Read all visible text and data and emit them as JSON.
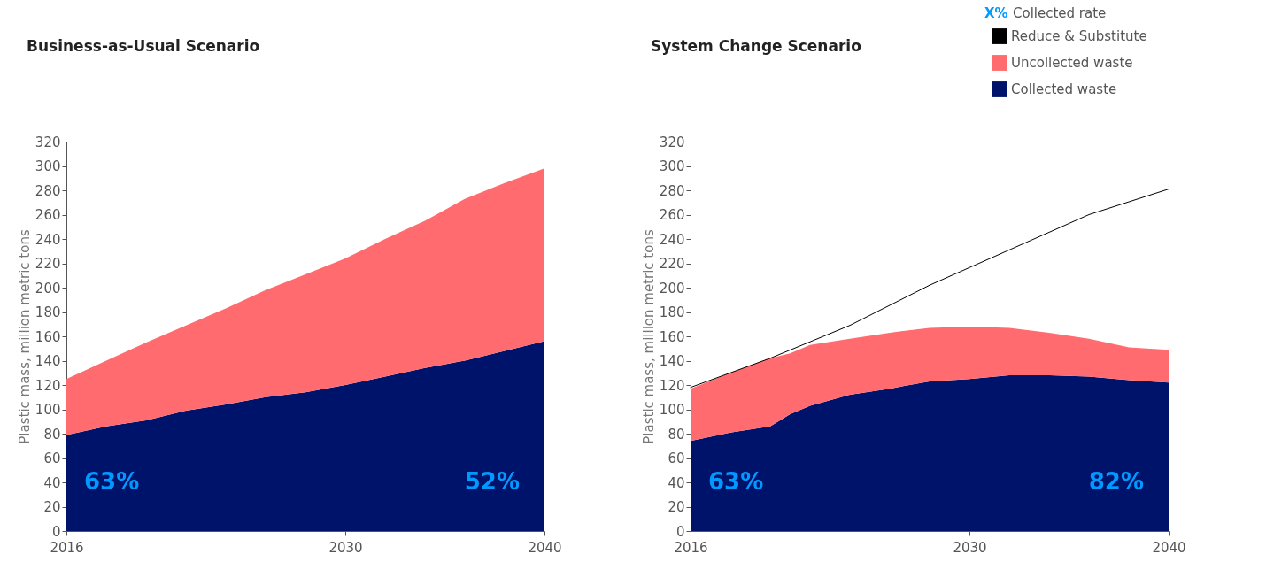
{
  "chart_data": [
    {
      "type": "area",
      "title": "Business-as-Usual Scenario",
      "ylabel": "Plastic mass, million metric tons",
      "stacked": true,
      "legend": false,
      "x": [
        2016,
        2018,
        2020,
        2022,
        2024,
        2026,
        2028,
        2030,
        2032,
        2034,
        2036,
        2038,
        2040
      ],
      "xlim": [
        2016,
        2040
      ],
      "xticks": [
        2016,
        2030,
        2040
      ],
      "ylim": [
        0,
        320
      ],
      "yticks": [
        0,
        20,
        40,
        60,
        80,
        100,
        120,
        140,
        160,
        180,
        200,
        220,
        240,
        260,
        280,
        300,
        320
      ],
      "series": [
        {
          "color": "#00136b",
          "values": [
            79,
            86,
            91,
            99,
            104,
            110,
            114,
            120,
            127,
            134,
            140,
            148,
            156
          ]
        },
        {
          "color": "#ff6b6e",
          "values": [
            46,
            54,
            64,
            70,
            79,
            88,
            97,
            104,
            113,
            121,
            133,
            138,
            142
          ]
        }
      ],
      "annotations": [
        "63%",
        "52%"
      ]
    },
    {
      "type": "area",
      "title": "System Change Scenario",
      "ylabel": "Plastic mass, million metric tons",
      "stacked": true,
      "legend": "top right",
      "x": [
        2016,
        2018,
        2020,
        2021,
        2022,
        2024,
        2026,
        2028,
        2030,
        2032,
        2034,
        2036,
        2038,
        2040
      ],
      "xlim": [
        2016,
        2040
      ],
      "xticks": [
        2016,
        2030,
        2040
      ],
      "ylim": [
        0,
        320
      ],
      "yticks": [
        0,
        20,
        40,
        60,
        80,
        100,
        120,
        140,
        160,
        180,
        200,
        220,
        240,
        260,
        280,
        300,
        320
      ],
      "series": [
        {
          "name": "Collected waste",
          "color": "#00136b",
          "values": [
            74,
            81,
            86,
            96,
            103,
            112,
            117,
            123,
            125,
            128,
            128,
            127,
            124,
            122
          ]
        },
        {
          "name": "Uncollected waste",
          "color": "#ff6b6e",
          "values": [
            43,
            49,
            56,
            50,
            50,
            46,
            46,
            44,
            43,
            39,
            35,
            31,
            27,
            27
          ]
        },
        {
          "name": "Reduce & Substitute",
          "type": "line",
          "color": "#000000",
          "x": [
            2016,
            2020,
            2024,
            2028,
            2032,
            2036,
            2040
          ],
          "values": [
            118,
            142,
            169,
            202,
            231,
            260,
            281
          ]
        }
      ],
      "annotations": [
        "63%",
        "82%",
        "X% Collected rate"
      ]
    }
  ]
}
